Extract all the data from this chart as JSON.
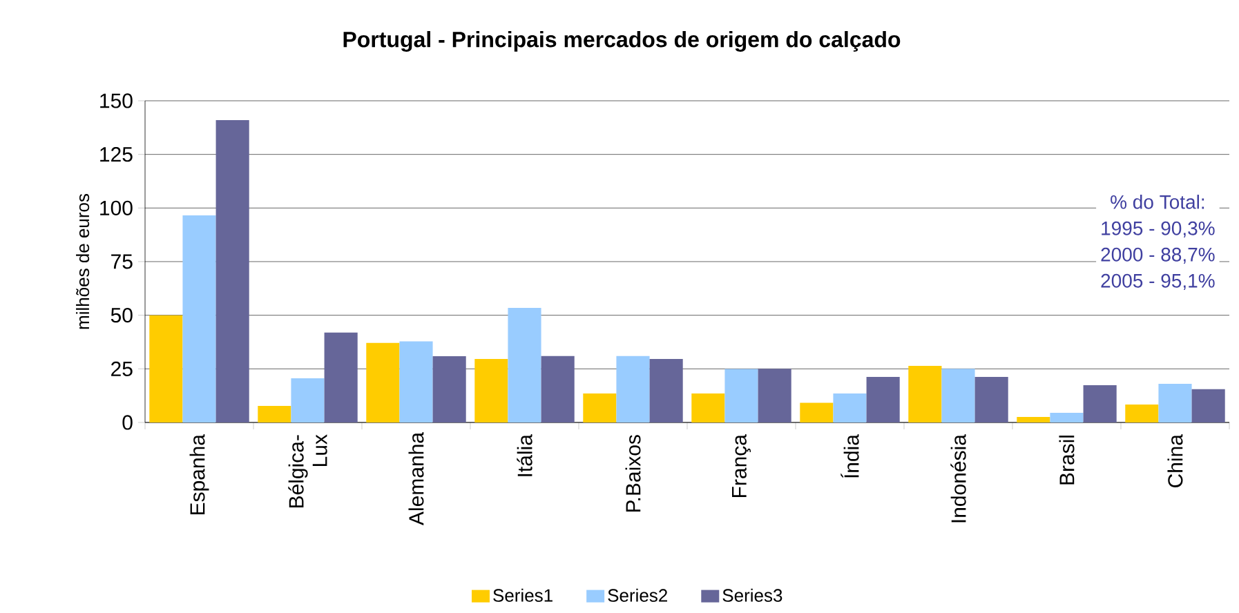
{
  "chart_data": {
    "type": "bar",
    "title": "Portugal - Principais mercados de origem do calçado",
    "ylabel": "milhões de euros",
    "categories": [
      "Espanha",
      "Bélgica-Lux",
      "Alemanha",
      "Itália",
      "P.Baixos",
      "França",
      "Índia",
      "Indonésia",
      "Brasil",
      "China"
    ],
    "series": [
      {
        "name": "Series1",
        "color": "#ffcc00",
        "values": [
          50,
          7.7,
          37.1,
          29.6,
          13.5,
          13.5,
          9.2,
          26.4,
          2.6,
          8.4
        ]
      },
      {
        "name": "Series2",
        "color": "#99ccff",
        "values": [
          96.6,
          20.6,
          37.8,
          53.4,
          31,
          24.9,
          13.5,
          25,
          4.5,
          18
        ]
      },
      {
        "name": "Series3",
        "color": "#666699",
        "values": [
          141,
          41.9,
          30.9,
          31,
          29.6,
          25,
          21.2,
          21.2,
          17.4,
          15.5
        ]
      }
    ],
    "ylim": [
      0,
      150
    ],
    "yticks": [
      0,
      25,
      50,
      75,
      100,
      125,
      150
    ],
    "grid": "y",
    "legend": "bottom",
    "annotations": [
      "% do Total:",
      "1995 - 90,3%",
      "2000 - 88,7%",
      "2005 - 95,1%"
    ]
  }
}
